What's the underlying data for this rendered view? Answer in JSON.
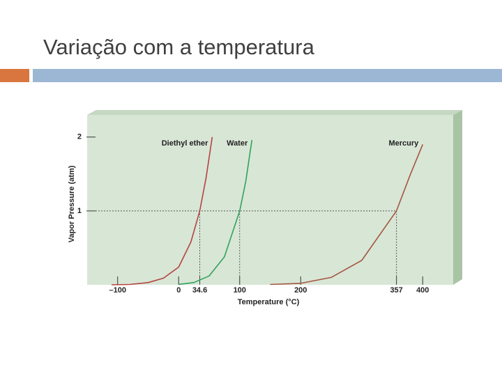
{
  "title": "Variação com a temperatura",
  "chart_data": {
    "type": "line",
    "xlabel": "Temperature (°C)",
    "ylabel": "Vapor Pressure (atm)",
    "xlim": [
      -150,
      450
    ],
    "ylim": [
      0,
      2.3
    ],
    "xticks": [
      {
        "value": -100,
        "label": "–100"
      },
      0,
      34.6,
      100,
      200,
      357,
      400
    ],
    "yticks": [
      1,
      2
    ],
    "series": [
      {
        "name": "Diethyl ether",
        "color": "#b4433f",
        "x": [
          -110,
          -80,
          -50,
          -25,
          0,
          20,
          34.6,
          45,
          55
        ],
        "values": [
          0,
          0.005,
          0.03,
          0.09,
          0.24,
          0.58,
          1,
          1.45,
          2.0
        ]
      },
      {
        "name": "Water",
        "color": "#2fa35a",
        "x": [
          0,
          25,
          50,
          75,
          100,
          110,
          120
        ],
        "values": [
          0.006,
          0.03,
          0.12,
          0.38,
          1,
          1.4,
          1.96
        ]
      },
      {
        "name": "Mercury",
        "color": "#a3553f",
        "x": [
          150,
          200,
          250,
          300,
          357,
          380,
          400
        ],
        "values": [
          0.005,
          0.02,
          0.1,
          0.33,
          1,
          1.5,
          1.9
        ]
      }
    ]
  }
}
